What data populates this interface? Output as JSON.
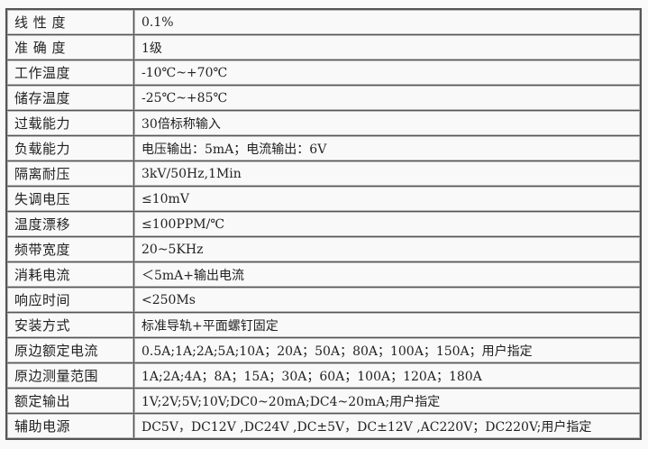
{
  "rows": [
    {
      "label": "线 性 度",
      "value": "0.1%"
    },
    {
      "label": "准 确 度",
      "value": "1级"
    },
    {
      "label": "工作温度",
      "value": "-10℃~+70℃"
    },
    {
      "label": "储存温度",
      "value": "-25℃~+85℃"
    },
    {
      "label": "过载能力",
      "value": "30倍标称输入"
    },
    {
      "label": "负载能力",
      "value": "电压输出：5mA；电流输出：6V"
    },
    {
      "label": "隔离耐压",
      "value": "3kV/50Hz,1Min"
    },
    {
      "label": "失调电压",
      "value": "≤10mV"
    },
    {
      "label": "温度漂移",
      "value": "≤100PPM/℃"
    },
    {
      "label": "频带宽度",
      "value": "20~5KHz"
    },
    {
      "label": "消耗电流",
      "value": "＜5mA+输出电流"
    },
    {
      "label": "响应时间",
      "value": "<250Ms"
    },
    {
      "label": "安装方式",
      "value": "标准导轨+平面螺钉固定"
    },
    {
      "label": "原边额定电流",
      "value": "0.5A;1A;2A;5A;10A；20A；50A；80A；100A；150A；用户指定"
    },
    {
      "label": "原边测量范围",
      "value": "1A;2A;4A；8A；15A；30A；60A；100A；120A；180A"
    },
    {
      "label": "额定输出",
      "value": "1V;2V;5V;10V;DC0~20mA;DC4~20mA;用户指定"
    },
    {
      "label": "辅助电源",
      "value": "DC5V，DC12V ,DC24V ,DC±5V，DC±12V ,AC220V；DC220V;用户指定"
    }
  ]
}
